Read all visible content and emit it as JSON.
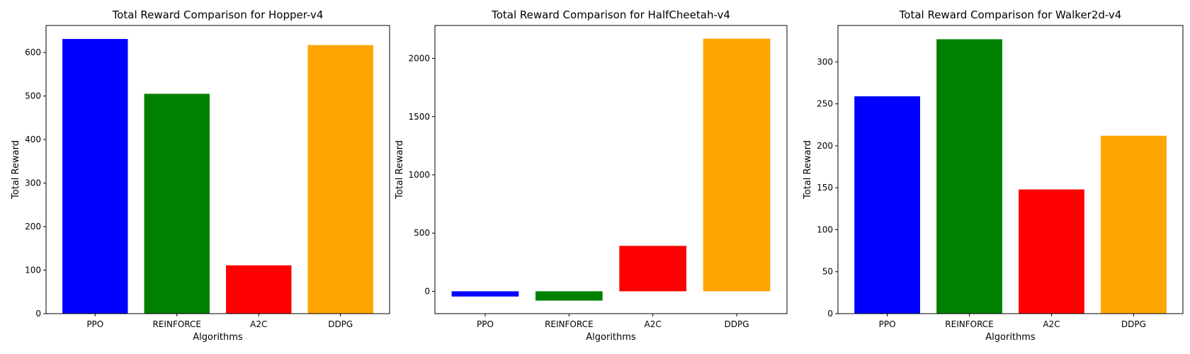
{
  "chart_data": [
    {
      "type": "bar",
      "title": "Total Reward Comparison for Hopper-v4",
      "xlabel": "Algorithms",
      "ylabel": "Total Reward",
      "categories": [
        "PPO",
        "REINFORCE",
        "A2C",
        "DDPG"
      ],
      "values": [
        631,
        505,
        111,
        617
      ],
      "colors": [
        "#0000ff",
        "#008000",
        "#ff0000",
        "#ffa500"
      ],
      "ylim": [
        0,
        662
      ],
      "yticks": [
        0,
        100,
        200,
        300,
        400,
        500,
        600
      ],
      "ytick_labels": [
        "0",
        "100",
        "200",
        "300",
        "400",
        "500",
        "600"
      ],
      "grid": false
    },
    {
      "type": "bar",
      "title": "Total Reward Comparison for HalfCheetah-v4",
      "xlabel": "Algorithms",
      "ylabel": "Total Reward",
      "categories": [
        "PPO",
        "REINFORCE",
        "A2C",
        "DDPG"
      ],
      "values": [
        -45,
        -80,
        390,
        2170
      ],
      "colors": [
        "#0000ff",
        "#008000",
        "#ff0000",
        "#ffa500"
      ],
      "ylim": [
        -192,
        2283
      ],
      "yticks": [
        0,
        500,
        1000,
        1500,
        2000
      ],
      "ytick_labels": [
        "0",
        "500",
        "1000",
        "1500",
        "2000"
      ],
      "grid": false
    },
    {
      "type": "bar",
      "title": "Total Reward Comparison for Walker2d-v4",
      "xlabel": "Algorithms",
      "ylabel": "Total Reward",
      "categories": [
        "PPO",
        "REINFORCE",
        "A2C",
        "DDPG"
      ],
      "values": [
        259,
        327,
        148,
        212
      ],
      "colors": [
        "#0000ff",
        "#008000",
        "#ff0000",
        "#ffa500"
      ],
      "ylim": [
        0,
        343.4
      ],
      "yticks": [
        0,
        50,
        100,
        150,
        200,
        250,
        300
      ],
      "ytick_labels": [
        "0",
        "50",
        "100",
        "150",
        "200",
        "250",
        "300"
      ],
      "grid": false
    }
  ]
}
